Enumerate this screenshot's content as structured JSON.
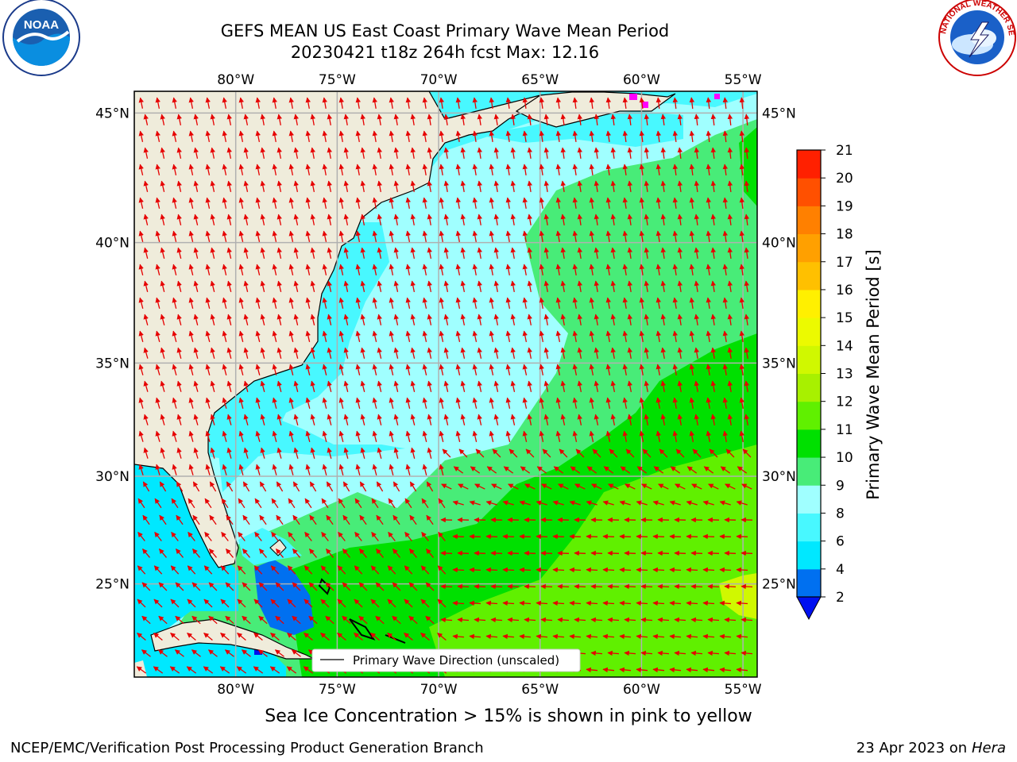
{
  "header": {
    "title_line1": "GEFS MEAN US East Coast Primary Wave Mean Period",
    "title_line2": "20230421 t18z 264h fcst   Max: 12.16"
  },
  "logos": {
    "left": {
      "name": "noara-logo",
      "text": "NOAA",
      "ring_text": "NATIONAL OCEANIC AND ATMOSPHERIC ADMINISTRATION · U.S. DEPARTMENT OF COMMERCE"
    },
    "right": {
      "name": "nws-logo",
      "ring_text": "NATIONAL WEATHER SERVICE"
    }
  },
  "map": {
    "lon_ticks": [
      "80°W",
      "75°W",
      "70°W",
      "65°W",
      "60°W",
      "55°W"
    ],
    "lat_ticks": [
      "45°N",
      "40°N",
      "35°N",
      "30°N",
      "25°N"
    ],
    "lon_range": [
      -85,
      -54.3
    ],
    "lat_range": [
      20.5,
      45.8
    ],
    "legend_label": "Primary Wave Direction (unscaled)",
    "arrow_color": "#e60000",
    "land_color": "#efecdb",
    "grid_color": "#b0b0b0"
  },
  "colorbar": {
    "label": "Primary Wave Mean Period [s]",
    "ticks": [
      "2",
      "4",
      "6",
      "8",
      "9",
      "10",
      "11",
      "12",
      "13",
      "14",
      "15",
      "16",
      "17",
      "18",
      "19",
      "20",
      "21"
    ],
    "colors": [
      "#0070f0",
      "#00e8ff",
      "#48f8ff",
      "#a0ffff",
      "#48ec78",
      "#00e000",
      "#60f000",
      "#a8f000",
      "#d0f800",
      "#ecfa00",
      "#fff000",
      "#ffc000",
      "#ffa000",
      "#ff8000",
      "#ff5000",
      "#ff2000"
    ],
    "under_color": "#0010f0"
  },
  "footer": {
    "note": "Sea Ice Concentration > 15% is shown in pink to yellow",
    "left": "NCEP/EMC/Verification Post Processing Product Generation Branch",
    "right_prefix": "23 Apr 2023 on ",
    "right_machine": "Hera"
  }
}
